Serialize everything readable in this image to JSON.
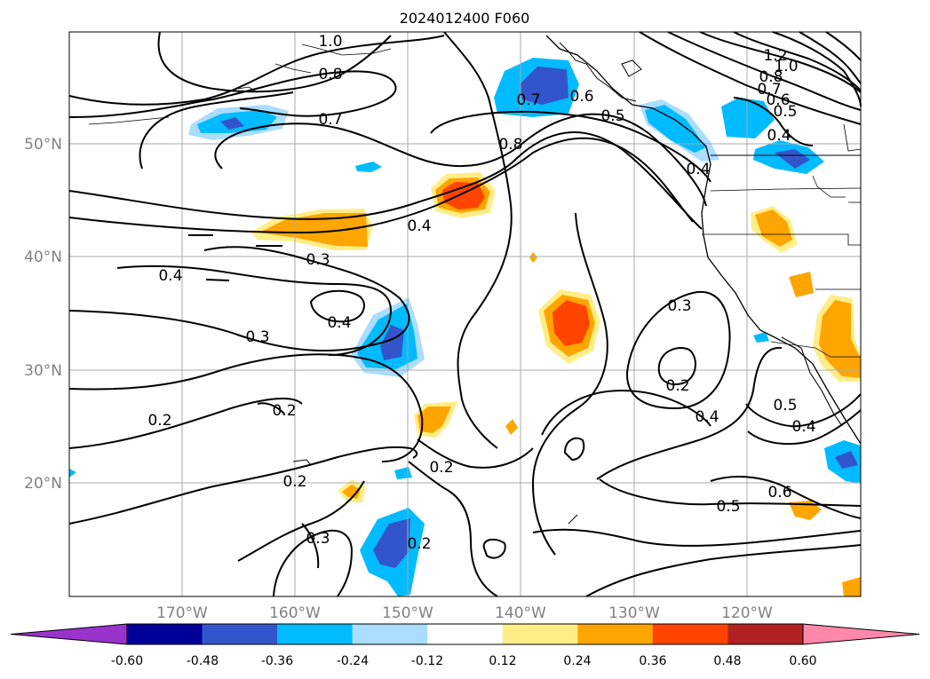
{
  "title": "2024012400 F060",
  "lat_labels": [
    "50°N",
    "40°N",
    "30°N",
    "20°N"
  ],
  "lon_labels": [
    "170°W",
    "160°W",
    "150°W",
    "140°W",
    "130°W",
    "120°W"
  ],
  "colorbar": {
    "ticks": [
      "-0.60",
      "-0.48",
      "-0.36",
      "-0.24",
      "-0.12",
      "0.12",
      "0.24",
      "0.36",
      "0.48",
      "0.60"
    ],
    "colors": [
      "#9933cc",
      "#000099",
      "#3355cc",
      "#00bbff",
      "#aaddff",
      "#ffffff",
      "#ffee88",
      "#ffa500",
      "#ff4400",
      "#b22222",
      "#ff88aa"
    ]
  },
  "contour_labels": [
    "1.0",
    "0.8",
    "0.7",
    "0.7",
    "0.6",
    "0.5",
    "0.8",
    "1.2",
    "1.0",
    "0.8",
    "0.7",
    "0.6",
    "0.5",
    "0.4",
    "0.4",
    "0.4",
    "0.3",
    "0.4",
    "0.4",
    "0.3",
    "0.3",
    "0.2",
    "0.2",
    "0.2",
    "0.2",
    "0.5",
    "0.4",
    "0.4",
    "0.6",
    "0.5",
    "0.2",
    "0.3",
    "0.2"
  ]
}
